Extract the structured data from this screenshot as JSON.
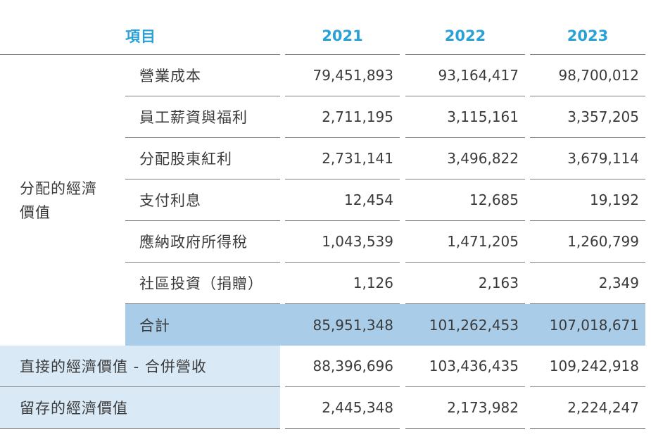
{
  "table": {
    "header": {
      "item_col": "項目",
      "years": [
        "2021",
        "2022",
        "2023"
      ]
    },
    "group": {
      "label": "分配的經濟價值",
      "lines": [
        "分配的經濟",
        "價值"
      ]
    },
    "distributed_rows": [
      {
        "label": "營業成本",
        "values": [
          "79,451,893",
          "93,164,417",
          "98,700,012"
        ]
      },
      {
        "label": "員工薪資與福利",
        "values": [
          "2,711,195",
          "3,115,161",
          "3,357,205"
        ]
      },
      {
        "label": "分配股東紅利",
        "values": [
          "2,731,141",
          "3,496,822",
          "3,679,114"
        ]
      },
      {
        "label": "支付利息",
        "values": [
          "12,454",
          "12,685",
          "19,192"
        ]
      },
      {
        "label": "應納政府所得稅",
        "values": [
          "1,043,539",
          "1,471,205",
          "1,260,799"
        ]
      },
      {
        "label": "社區投資（捐贈）",
        "values": [
          "1,126",
          "2,163",
          "2,349"
        ]
      }
    ],
    "total_row": {
      "label": "合計",
      "values": [
        "85,951,348",
        "101,262,453",
        "107,018,671"
      ]
    },
    "summary_rows": [
      {
        "label": "直接的經濟價值 - 合併營收",
        "values": [
          "88,396,696",
          "103,436,435",
          "109,242,918"
        ]
      },
      {
        "label": "留存的經濟價值",
        "values": [
          "2,445,348",
          "2,173,982",
          "2,224,247"
        ]
      }
    ],
    "colors": {
      "header_text": "#29A1D7",
      "total_row_bg": "#A9CDE9",
      "summary_label_bg": "#D9E9F6",
      "rule_line": "#7D7D7D",
      "body_text": "#3A3A3A"
    }
  }
}
